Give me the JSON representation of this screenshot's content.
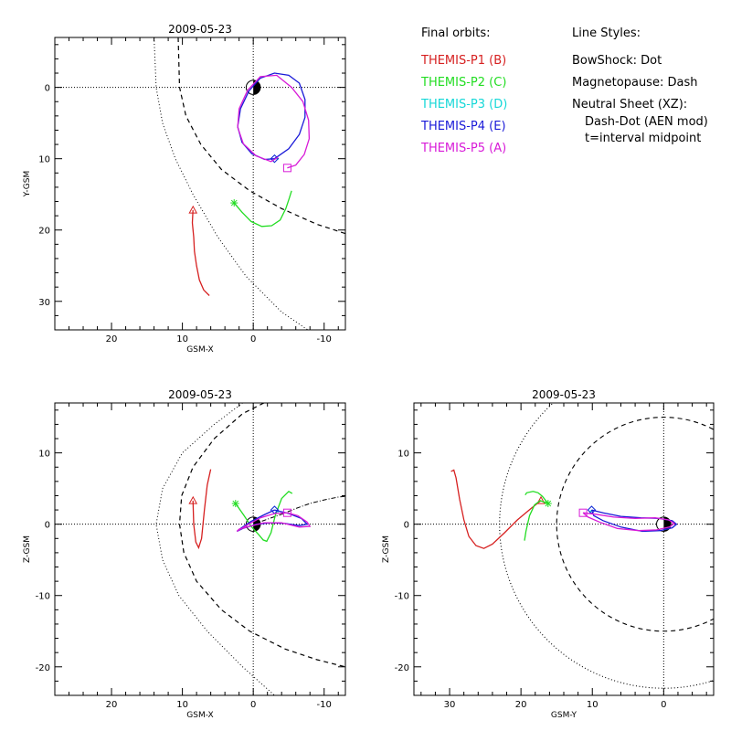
{
  "legend": {
    "header": "Final orbits:",
    "entries": [
      {
        "label": "THEMIS-P1 (B)",
        "color": "#d62020"
      },
      {
        "label": "THEMIS-P2 (C)",
        "color": "#22dd22"
      },
      {
        "label": "THEMIS-P3 (D)",
        "color": "#16d8d8"
      },
      {
        "label": "THEMIS-P4 (E)",
        "color": "#1a1ad8"
      },
      {
        "label": "THEMIS-P5 (A)",
        "color": "#d81ad8"
      }
    ],
    "styles_header": "Line Styles:",
    "styles": [
      "BowShock: Dot",
      "Magnetopause: Dash",
      "Neutral Sheet (XZ):",
      "Dash-Dot (AEN mod)",
      "t=interval midpoint"
    ]
  },
  "chart_data": [
    {
      "type": "line",
      "title": "2009-05-23",
      "xlabel": "GSM-X",
      "ylabel": "Y-GSM",
      "xlim": [
        28,
        -13
      ],
      "ylim": [
        -7,
        34
      ],
      "y_inverted": true,
      "xticks": [
        20,
        10,
        0,
        -10
      ],
      "yticks": [
        0,
        10,
        20,
        30
      ],
      "series": [
        {
          "probe": "P1",
          "marker": "triangle",
          "points": [
            [
              8.5,
              17.2
            ],
            [
              8.6,
              19
            ],
            [
              8.4,
              21
            ],
            [
              8.3,
              23
            ],
            [
              8.0,
              25
            ],
            [
              7.6,
              27
            ],
            [
              7.0,
              28.4
            ],
            [
              6.2,
              29.2
            ]
          ]
        },
        {
          "probe": "P2",
          "marker": "asterisk",
          "points": [
            [
              2.7,
              16.2
            ],
            [
              1.6,
              17.5
            ],
            [
              0.3,
              18.8
            ],
            [
              -1.2,
              19.5
            ],
            [
              -2.6,
              19.4
            ],
            [
              -3.8,
              18.6
            ],
            [
              -4.6,
              17
            ],
            [
              -5.1,
              15.5
            ],
            [
              -5.4,
              14.5
            ]
          ]
        },
        {
          "probe": "P3",
          "marker": "diamond",
          "points": [
            [
              -3.0,
              10.0
            ],
            [
              -3.6,
              10.0
            ]
          ]
        },
        {
          "probe": "P4",
          "marker": "diamond",
          "points": [
            [
              -3.0,
              10.0
            ],
            [
              -5.0,
              8.6
            ],
            [
              -6.5,
              6.6
            ],
            [
              -7.3,
              4.2
            ],
            [
              -7.3,
              1.7
            ],
            [
              -6.5,
              -0.6
            ],
            [
              -5.0,
              -1.7
            ],
            [
              -3.0,
              -2.0
            ],
            [
              -1.0,
              -1.3
            ],
            [
              0.6,
              0.5
            ],
            [
              1.8,
              3.0
            ],
            [
              2.2,
              5.5
            ],
            [
              1.6,
              7.7
            ],
            [
              0.2,
              9.3
            ],
            [
              -1.6,
              10.1
            ],
            [
              -3.0,
              10.0
            ]
          ]
        },
        {
          "probe": "P5",
          "marker": "square",
          "points": [
            [
              -4.8,
              11.3
            ],
            [
              -6.0,
              10.9
            ],
            [
              -7.2,
              9.4
            ],
            [
              -7.9,
              7.2
            ],
            [
              -7.8,
              4.6
            ],
            [
              -7.0,
              2.0
            ],
            [
              -5.4,
              0.0
            ],
            [
              -3.3,
              -1.7
            ],
            [
              -1.0,
              -1.5
            ],
            [
              0.8,
              0.4
            ],
            [
              2.0,
              3.0
            ],
            [
              2.2,
              5.6
            ],
            [
              1.4,
              7.9
            ],
            [
              -0.4,
              9.6
            ],
            [
              -2.5,
              10.4
            ],
            [
              -3.5,
              9.8
            ]
          ]
        }
      ],
      "earth": [
        0,
        0
      ],
      "bowshock": [
        [
          14.0,
          -7
        ],
        [
          13.7,
          0
        ],
        [
          12.8,
          5
        ],
        [
          11.0,
          10
        ],
        [
          8.5,
          15
        ],
        [
          5.0,
          21
        ],
        [
          1.0,
          26.5
        ],
        [
          -4.0,
          31.5
        ],
        [
          -8.0,
          34.2
        ]
      ],
      "magnetopause": [
        [
          10.6,
          -7
        ],
        [
          10.4,
          0
        ],
        [
          9.5,
          4
        ],
        [
          7.4,
          8
        ],
        [
          4.5,
          11.5
        ],
        [
          0.5,
          14.5
        ],
        [
          -4.0,
          17.0
        ],
        [
          -9.0,
          19.2
        ],
        [
          -13.0,
          20.5
        ]
      ]
    },
    {
      "type": "line",
      "title": "2009-05-23",
      "xlabel": "GSM-X",
      "ylabel": "Z-GSM",
      "xlim": [
        28,
        -13
      ],
      "ylim": [
        -24,
        17
      ],
      "xticks": [
        20,
        10,
        0,
        -10
      ],
      "yticks": [
        10,
        0,
        -10,
        -20
      ],
      "series": [
        {
          "probe": "P1",
          "marker": "triangle",
          "points": [
            [
              8.5,
              3.3
            ],
            [
              8.4,
              0
            ],
            [
              8.1,
              -2.5
            ],
            [
              7.7,
              -3.3
            ],
            [
              7.3,
              -2
            ],
            [
              6.9,
              2
            ],
            [
              6.5,
              5.5
            ],
            [
              6.1,
              7.3
            ],
            [
              6.0,
              7.7
            ]
          ]
        },
        {
          "probe": "P2",
          "marker": "asterisk",
          "points": [
            [
              2.5,
              2.9
            ],
            [
              1.3,
              1.2
            ],
            [
              0.3,
              -0.3
            ],
            [
              -0.8,
              -1.5
            ],
            [
              -1.4,
              -2.2
            ],
            [
              -1.9,
              -2.4
            ],
            [
              -2.5,
              -1.2
            ],
            [
              -3.1,
              1.2
            ],
            [
              -4.0,
              3.6
            ],
            [
              -5.0,
              4.6
            ],
            [
              -5.5,
              4.3
            ]
          ]
        },
        {
          "probe": "P3",
          "marker": "diamond",
          "points": [
            [
              -3.0,
              2.0
            ],
            [
              -3.6,
              1.7
            ]
          ]
        },
        {
          "probe": "P4",
          "marker": "diamond",
          "points": [
            [
              -3.0,
              2.0
            ],
            [
              -5.0,
              1.5
            ],
            [
              -6.8,
              0.8
            ],
            [
              -7.6,
              0.0
            ],
            [
              -6.5,
              -0.2
            ],
            [
              -4.5,
              0.1
            ],
            [
              -2.5,
              0.2
            ],
            [
              -0.5,
              0.0
            ],
            [
              1.5,
              -0.6
            ],
            [
              2.3,
              -1.0
            ],
            [
              1.8,
              -0.6
            ],
            [
              0.3,
              0.4
            ],
            [
              -1.5,
              1.3
            ],
            [
              -3.0,
              2.0
            ]
          ]
        },
        {
          "probe": "P5",
          "marker": "square",
          "points": [
            [
              -4.8,
              1.6
            ],
            [
              -6.3,
              1.2
            ],
            [
              -7.6,
              0.3
            ],
            [
              -8.0,
              -0.3
            ],
            [
              -6.5,
              -0.4
            ],
            [
              -4.0,
              0.2
            ],
            [
              -1.5,
              0.2
            ],
            [
              0.5,
              -0.3
            ],
            [
              2.0,
              -0.7
            ],
            [
              2.3,
              -1.0
            ],
            [
              1.0,
              -0.2
            ],
            [
              -1.0,
              0.9
            ],
            [
              -3.0,
              1.5
            ],
            [
              -4.8,
              1.6
            ]
          ]
        }
      ],
      "earth": [
        0,
        0
      ],
      "bowshock": [
        [
          1.5,
          17
        ],
        [
          5.5,
          14
        ],
        [
          10.0,
          10
        ],
        [
          12.8,
          5
        ],
        [
          13.7,
          0
        ],
        [
          12.8,
          -5
        ],
        [
          10.5,
          -10
        ],
        [
          6.5,
          -15
        ],
        [
          1.5,
          -20
        ],
        [
          -3.0,
          -24
        ]
      ],
      "magnetopause": [
        [
          -1.5,
          17
        ],
        [
          1.5,
          15.5
        ],
        [
          5.5,
          12
        ],
        [
          8.5,
          8
        ],
        [
          10.1,
          4
        ],
        [
          10.4,
          0
        ],
        [
          9.8,
          -4
        ],
        [
          8.0,
          -8
        ],
        [
          4.5,
          -12
        ],
        [
          0.5,
          -15
        ],
        [
          -4.5,
          -17.5
        ],
        [
          -9.0,
          -19
        ],
        [
          -13.0,
          -20
        ]
      ],
      "neutral_sheet": [
        [
          0,
          0
        ],
        [
          -2,
          0.7
        ],
        [
          -4,
          1.4
        ],
        [
          -6,
          2.2
        ],
        [
          -8,
          2.9
        ],
        [
          -10,
          3.4
        ],
        [
          -12,
          3.8
        ],
        [
          -13,
          3.9
        ]
      ]
    },
    {
      "type": "line",
      "title": "2009-05-23",
      "xlabel": "GSM-Y",
      "ylabel": "Z-GSM",
      "xlim": [
        35,
        -7
      ],
      "ylim": [
        -24,
        17
      ],
      "xticks": [
        30,
        20,
        10,
        0
      ],
      "yticks": [
        10,
        0,
        -10,
        -20
      ],
      "series": [
        {
          "probe": "P1",
          "marker": "triangle",
          "points": [
            [
              17.2,
              3.3
            ],
            [
              18.6,
              2.2
            ],
            [
              20.5,
              0.6
            ],
            [
              22.3,
              -1.2
            ],
            [
              24.0,
              -2.8
            ],
            [
              25.2,
              -3.4
            ],
            [
              26.3,
              -3.0
            ],
            [
              27.3,
              -1.7
            ],
            [
              28.0,
              0.6
            ],
            [
              28.6,
              3.5
            ],
            [
              29.1,
              6.5
            ],
            [
              29.4,
              7.6
            ],
            [
              29.8,
              7.4
            ]
          ]
        },
        {
          "probe": "P2",
          "marker": "asterisk",
          "points": [
            [
              16.2,
              2.9
            ],
            [
              17.0,
              3.9
            ],
            [
              17.6,
              4.4
            ],
            [
              18.3,
              4.6
            ],
            [
              19.2,
              4.4
            ],
            [
              19.4,
              4.1
            ]
          ]
        },
        {
          "probe": "P2",
          "marker": "",
          "points": [
            [
              16.2,
              2.9
            ],
            [
              17.3,
              3.3
            ],
            [
              18.1,
              2.7
            ],
            [
              18.8,
              1.2
            ],
            [
              19.3,
              -1.0
            ],
            [
              19.5,
              -2.3
            ]
          ]
        },
        {
          "probe": "P3",
          "marker": "diamond",
          "points": [
            [
              10.1,
              2.0
            ],
            [
              10.4,
              1.5
            ]
          ]
        },
        {
          "probe": "P4",
          "marker": "diamond",
          "points": [
            [
              10.1,
              2.0
            ],
            [
              8.5,
              1.6
            ],
            [
              6.0,
              1.1
            ],
            [
              3.2,
              0.9
            ],
            [
              0.6,
              0.8
            ],
            [
              -1.2,
              0.5
            ],
            [
              -1.8,
              0.0
            ],
            [
              -1.2,
              -0.5
            ],
            [
              0.5,
              -0.9
            ],
            [
              3.0,
              -1.0
            ],
            [
              6.0,
              -0.4
            ],
            [
              8.5,
              0.5
            ],
            [
              9.8,
              1.2
            ],
            [
              10.1,
              2.0
            ]
          ]
        },
        {
          "probe": "P5",
          "marker": "square",
          "points": [
            [
              11.3,
              1.6
            ],
            [
              9.5,
              1.4
            ],
            [
              7.0,
              1.0
            ],
            [
              4.0,
              0.8
            ],
            [
              1.2,
              0.9
            ],
            [
              -0.7,
              0.6
            ],
            [
              -1.5,
              0.1
            ],
            [
              -0.8,
              -0.4
            ],
            [
              1.0,
              -0.8
            ],
            [
              3.5,
              -0.9
            ],
            [
              6.5,
              -0.6
            ],
            [
              9.0,
              0.3
            ],
            [
              10.6,
              1.0
            ],
            [
              11.3,
              1.6
            ]
          ]
        }
      ],
      "earth": [
        0,
        0
      ],
      "bowshock_circle": {
        "center": [
          0,
          0
        ],
        "radius": 23
      },
      "magnetopause_circle": {
        "center": [
          0,
          0
        ],
        "radius": 15
      }
    }
  ]
}
